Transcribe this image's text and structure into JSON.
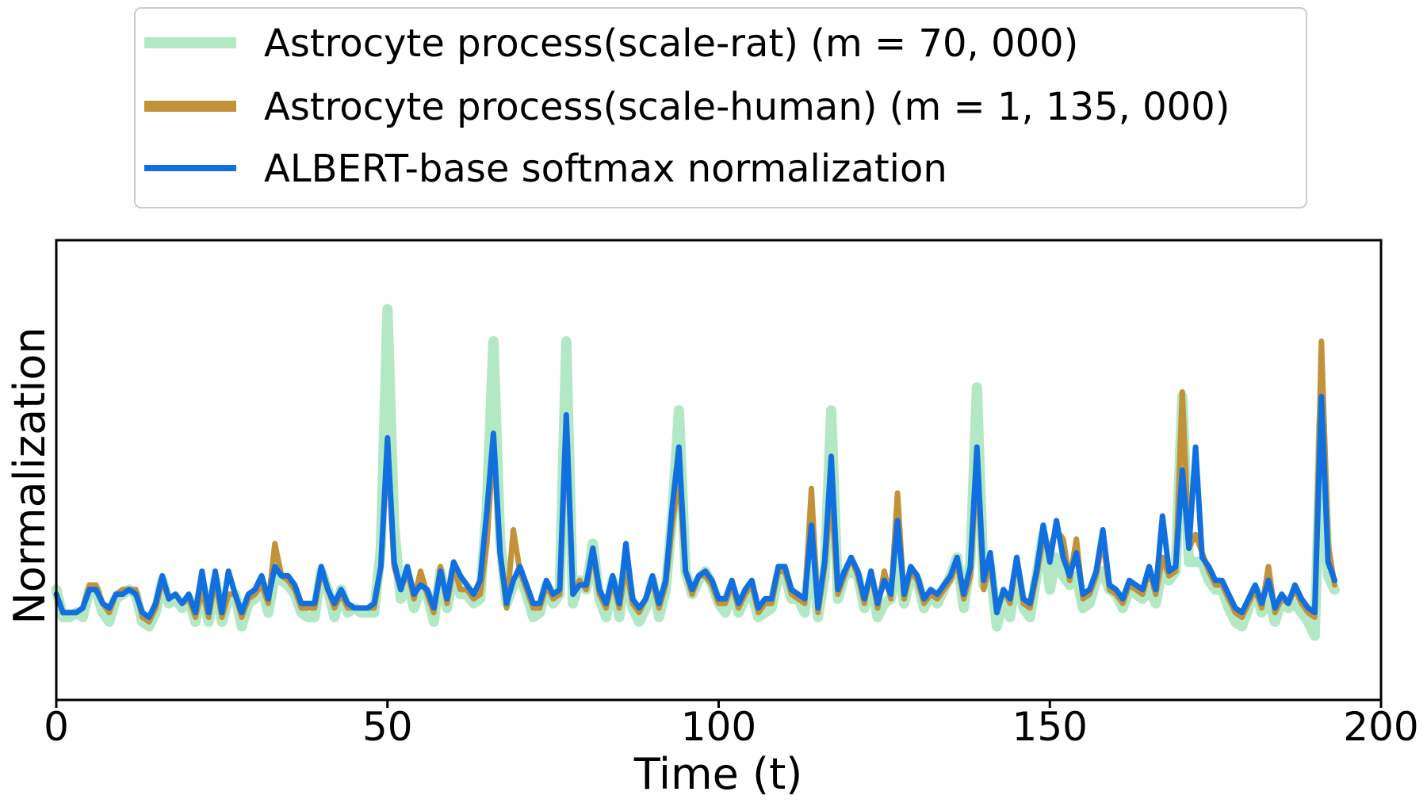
{
  "chart_data": {
    "type": "line",
    "xlabel": "Time (t)",
    "ylabel": "Normalization",
    "xlim": [
      0,
      200
    ],
    "ylim": [
      0,
      1
    ],
    "x_ticks": [
      0,
      50,
      100,
      150,
      200
    ],
    "x_tick_labels": [
      "0",
      "50",
      "100",
      "150",
      "200"
    ],
    "y_ticks_visible": false,
    "grid": false,
    "legend_position": "top-center, above plot",
    "x_step": 1,
    "series": [
      {
        "name": "Astrocyte process(scale-rat) (m = 70, 000)",
        "color": "#b3e8c4",
        "linewidth": "thick",
        "values": [
          0.24,
          0.18,
          0.18,
          0.19,
          0.18,
          0.24,
          0.24,
          0.19,
          0.17,
          0.22,
          0.23,
          0.24,
          0.23,
          0.17,
          0.16,
          0.19,
          0.26,
          0.21,
          0.22,
          0.2,
          0.22,
          0.17,
          0.25,
          0.17,
          0.26,
          0.17,
          0.22,
          0.23,
          0.16,
          0.21,
          0.22,
          0.25,
          0.19,
          0.27,
          0.26,
          0.25,
          0.23,
          0.19,
          0.18,
          0.18,
          0.28,
          0.24,
          0.18,
          0.24,
          0.19,
          0.2,
          0.19,
          0.19,
          0.19,
          0.33,
          0.85,
          0.38,
          0.22,
          0.26,
          0.2,
          0.24,
          0.23,
          0.17,
          0.28,
          0.2,
          0.28,
          0.23,
          0.23,
          0.21,
          0.22,
          0.42,
          0.78,
          0.35,
          0.21,
          0.25,
          0.27,
          0.23,
          0.18,
          0.19,
          0.25,
          0.21,
          0.23,
          0.78,
          0.21,
          0.26,
          0.24,
          0.34,
          0.22,
          0.18,
          0.26,
          0.18,
          0.29,
          0.2,
          0.17,
          0.2,
          0.26,
          0.18,
          0.24,
          0.4,
          0.63,
          0.28,
          0.23,
          0.26,
          0.28,
          0.25,
          0.21,
          0.19,
          0.24,
          0.19,
          0.22,
          0.23,
          0.18,
          0.19,
          0.2,
          0.27,
          0.27,
          0.22,
          0.22,
          0.19,
          0.35,
          0.18,
          0.27,
          0.63,
          0.22,
          0.27,
          0.28,
          0.27,
          0.2,
          0.26,
          0.18,
          0.21,
          0.22,
          0.31,
          0.21,
          0.27,
          0.26,
          0.2,
          0.23,
          0.21,
          0.24,
          0.27,
          0.31,
          0.2,
          0.3,
          0.68,
          0.25,
          0.29,
          0.16,
          0.22,
          0.18,
          0.28,
          0.2,
          0.18,
          0.27,
          0.36,
          0.24,
          0.31,
          0.27,
          0.25,
          0.27,
          0.2,
          0.21,
          0.26,
          0.28,
          0.24,
          0.23,
          0.2,
          0.24,
          0.23,
          0.22,
          0.24,
          0.21,
          0.29,
          0.26,
          0.28,
          0.66,
          0.3,
          0.3,
          0.3,
          0.26,
          0.24,
          0.24,
          0.2,
          0.17,
          0.16,
          0.2,
          0.24,
          0.19,
          0.22,
          0.17,
          0.22,
          0.2,
          0.21,
          0.19,
          0.17,
          0.14,
          0.61,
          0.27,
          0.24
        ]
      },
      {
        "name": "Astrocyte process(scale-human) (m = 1, 135, 000)",
        "color": "#c2923a",
        "linewidth": "medium",
        "values": [
          0.23,
          0.19,
          0.19,
          0.19,
          0.2,
          0.25,
          0.25,
          0.21,
          0.19,
          0.23,
          0.24,
          0.24,
          0.24,
          0.18,
          0.17,
          0.2,
          0.26,
          0.22,
          0.23,
          0.21,
          0.22,
          0.18,
          0.24,
          0.18,
          0.26,
          0.18,
          0.23,
          0.23,
          0.18,
          0.22,
          0.23,
          0.25,
          0.21,
          0.34,
          0.27,
          0.26,
          0.24,
          0.2,
          0.2,
          0.2,
          0.28,
          0.24,
          0.2,
          0.23,
          0.2,
          0.2,
          0.2,
          0.2,
          0.2,
          0.29,
          0.56,
          0.29,
          0.24,
          0.28,
          0.22,
          0.28,
          0.23,
          0.19,
          0.29,
          0.21,
          0.29,
          0.24,
          0.24,
          0.22,
          0.23,
          0.34,
          0.56,
          0.32,
          0.2,
          0.37,
          0.28,
          0.24,
          0.2,
          0.2,
          0.25,
          0.22,
          0.23,
          0.61,
          0.23,
          0.26,
          0.24,
          0.32,
          0.23,
          0.2,
          0.26,
          0.2,
          0.29,
          0.21,
          0.19,
          0.22,
          0.26,
          0.2,
          0.25,
          0.38,
          0.49,
          0.28,
          0.23,
          0.27,
          0.27,
          0.25,
          0.21,
          0.21,
          0.25,
          0.2,
          0.23,
          0.25,
          0.19,
          0.21,
          0.21,
          0.28,
          0.28,
          0.23,
          0.22,
          0.21,
          0.46,
          0.19,
          0.29,
          0.45,
          0.23,
          0.27,
          0.31,
          0.27,
          0.21,
          0.28,
          0.2,
          0.28,
          0.22,
          0.45,
          0.22,
          0.28,
          0.26,
          0.21,
          0.23,
          0.22,
          0.24,
          0.26,
          0.3,
          0.22,
          0.27,
          0.52,
          0.24,
          0.3,
          0.19,
          0.24,
          0.21,
          0.31,
          0.21,
          0.2,
          0.27,
          0.35,
          0.33,
          0.37,
          0.35,
          0.26,
          0.35,
          0.22,
          0.23,
          0.27,
          0.35,
          0.24,
          0.23,
          0.21,
          0.25,
          0.24,
          0.23,
          0.28,
          0.23,
          0.31,
          0.27,
          0.28,
          0.67,
          0.33,
          0.36,
          0.32,
          0.28,
          0.25,
          0.25,
          0.22,
          0.19,
          0.18,
          0.21,
          0.24,
          0.2,
          0.29,
          0.19,
          0.22,
          0.21,
          0.24,
          0.21,
          0.19,
          0.18,
          0.78,
          0.34,
          0.25
        ]
      },
      {
        "name": "ALBERT-base softmax normalization",
        "color": "#1170e0",
        "linewidth": "medium",
        "values": [
          0.23,
          0.19,
          0.19,
          0.19,
          0.2,
          0.24,
          0.24,
          0.21,
          0.2,
          0.23,
          0.23,
          0.24,
          0.23,
          0.19,
          0.18,
          0.21,
          0.27,
          0.22,
          0.23,
          0.21,
          0.23,
          0.19,
          0.28,
          0.19,
          0.28,
          0.19,
          0.28,
          0.23,
          0.19,
          0.23,
          0.24,
          0.27,
          0.22,
          0.29,
          0.27,
          0.27,
          0.25,
          0.21,
          0.21,
          0.21,
          0.29,
          0.24,
          0.21,
          0.24,
          0.21,
          0.2,
          0.2,
          0.2,
          0.21,
          0.29,
          0.57,
          0.3,
          0.24,
          0.29,
          0.23,
          0.25,
          0.24,
          0.2,
          0.28,
          0.22,
          0.3,
          0.27,
          0.25,
          0.23,
          0.26,
          0.41,
          0.58,
          0.32,
          0.21,
          0.26,
          0.29,
          0.25,
          0.21,
          0.21,
          0.26,
          0.23,
          0.24,
          0.62,
          0.23,
          0.25,
          0.25,
          0.33,
          0.24,
          0.21,
          0.27,
          0.21,
          0.34,
          0.22,
          0.2,
          0.22,
          0.27,
          0.21,
          0.26,
          0.42,
          0.55,
          0.28,
          0.24,
          0.27,
          0.28,
          0.26,
          0.22,
          0.22,
          0.26,
          0.21,
          0.24,
          0.26,
          0.2,
          0.22,
          0.22,
          0.29,
          0.29,
          0.24,
          0.23,
          0.22,
          0.38,
          0.2,
          0.3,
          0.53,
          0.24,
          0.28,
          0.31,
          0.28,
          0.22,
          0.28,
          0.21,
          0.26,
          0.23,
          0.39,
          0.23,
          0.29,
          0.27,
          0.22,
          0.24,
          0.23,
          0.25,
          0.27,
          0.31,
          0.23,
          0.29,
          0.55,
          0.26,
          0.32,
          0.19,
          0.24,
          0.22,
          0.31,
          0.22,
          0.21,
          0.28,
          0.38,
          0.3,
          0.39,
          0.31,
          0.27,
          0.32,
          0.23,
          0.24,
          0.28,
          0.37,
          0.25,
          0.24,
          0.22,
          0.26,
          0.25,
          0.24,
          0.29,
          0.24,
          0.4,
          0.28,
          0.29,
          0.5,
          0.33,
          0.55,
          0.31,
          0.29,
          0.26,
          0.26,
          0.23,
          0.2,
          0.19,
          0.22,
          0.25,
          0.21,
          0.26,
          0.2,
          0.23,
          0.21,
          0.25,
          0.22,
          0.2,
          0.19,
          0.66,
          0.3,
          0.26
        ]
      }
    ]
  }
}
